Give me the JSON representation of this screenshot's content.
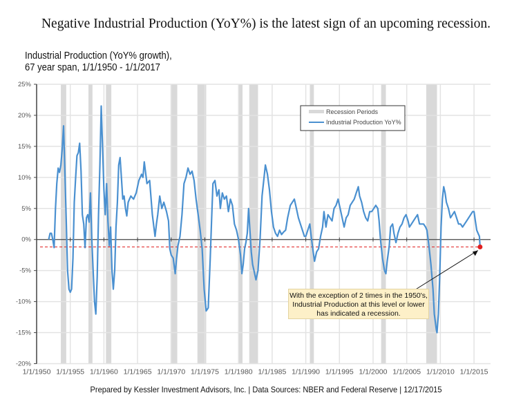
{
  "headline": "Negative Industrial Production (YoY%) is the latest sign of an upcoming recession.",
  "subtitle_line1": "Industrial Production (YoY% growth),",
  "subtitle_line2": "67 year span, 1/1/1950 - 1/1/2017",
  "footer": "Prepared by Kessler Investment Advisors, Inc. | Data Sources: NBER and Federal Reserve | 12/17/2015",
  "annotation": {
    "lines": [
      "With the exception of 2 times in the 1950's,",
      "Industrial Production at this level or lower",
      "has indicated a recession."
    ]
  },
  "colors": {
    "series": "#4a90d0",
    "recession": "#d9d9d9",
    "threshold": "#e02020",
    "grid": "#e3e3e3",
    "axis": "#444444"
  },
  "chart_data": {
    "type": "line",
    "title": "Industrial Production (YoY% growth), 67 year span, 1/1/1950 - 1/1/2017",
    "xlabel": "",
    "ylabel": "",
    "xlim": [
      1950,
      2017.2
    ],
    "ylim": [
      -20,
      25
    ],
    "grid": true,
    "legend_position": "top-right",
    "legend": [
      "Recession Periods",
      "Industrial Production YoY%"
    ],
    "y_ticks": [
      "25%",
      "20%",
      "15%",
      "10%",
      "5%",
      "0%",
      "-5%",
      "-10%",
      "-15%",
      "-20%"
    ],
    "y_tick_values": [
      25,
      20,
      15,
      10,
      5,
      0,
      -5,
      -10,
      -15,
      -20
    ],
    "x_ticks": [
      "1/1/1950",
      "1/1/1955",
      "1/1/1960",
      "1/1/1965",
      "1/1/1970",
      "1/1/1975",
      "1/1/1980",
      "1/1/1985",
      "1/1/1990",
      "1/1/1995",
      "2000",
      "1/1/2005",
      "1/1/2010",
      "1/1/2015"
    ],
    "x_tick_values": [
      1950,
      1955,
      1960,
      1965,
      1970,
      1975,
      1980,
      1985,
      1990,
      1995,
      2000,
      2005,
      2010,
      2015
    ],
    "threshold": {
      "value": -1.2,
      "style": "dashed",
      "label": ""
    },
    "latest_point": {
      "x": 2015.9,
      "y": -1.2
    },
    "recessions": [
      [
        1953.6,
        1954.4
      ],
      [
        1957.7,
        1958.3
      ],
      [
        1960.3,
        1961.1
      ],
      [
        1969.9,
        1970.9
      ],
      [
        1973.9,
        1975.2
      ],
      [
        1980.0,
        1980.6
      ],
      [
        1981.6,
        1982.9
      ],
      [
        1990.6,
        1991.2
      ],
      [
        2001.2,
        2001.9
      ],
      [
        2007.9,
        2009.5
      ]
    ],
    "series": [
      {
        "name": "Industrial Production YoY%",
        "points": [
          [
            1951.8,
            0.0
          ],
          [
            1952.0,
            1.0
          ],
          [
            1952.2,
            1.0
          ],
          [
            1952.4,
            0.0
          ],
          [
            1952.6,
            -1.3
          ],
          [
            1952.8,
            5.0
          ],
          [
            1953.0,
            9.0
          ],
          [
            1953.2,
            11.5
          ],
          [
            1953.4,
            10.8
          ],
          [
            1953.6,
            12.0
          ],
          [
            1953.8,
            14.5
          ],
          [
            1954.0,
            18.3
          ],
          [
            1954.2,
            11.0
          ],
          [
            1954.4,
            3.0
          ],
          [
            1954.6,
            -5.0
          ],
          [
            1954.8,
            -8.0
          ],
          [
            1955.0,
            -8.5
          ],
          [
            1955.2,
            -8.0
          ],
          [
            1955.4,
            -3.0
          ],
          [
            1955.6,
            6.0
          ],
          [
            1955.8,
            10.0
          ],
          [
            1956.0,
            13.5
          ],
          [
            1956.2,
            14.0
          ],
          [
            1956.4,
            15.5
          ],
          [
            1956.6,
            11.0
          ],
          [
            1956.8,
            4.0
          ],
          [
            1957.0,
            2.5
          ],
          [
            1957.2,
            -1.3
          ],
          [
            1957.4,
            3.5
          ],
          [
            1957.6,
            4.0
          ],
          [
            1957.8,
            2.8
          ],
          [
            1958.0,
            7.5
          ],
          [
            1958.2,
            0.0
          ],
          [
            1958.4,
            -5.0
          ],
          [
            1958.6,
            -10.0
          ],
          [
            1958.8,
            -12.0
          ],
          [
            1959.0,
            -6.0
          ],
          [
            1959.2,
            4.0
          ],
          [
            1959.4,
            12.0
          ],
          [
            1959.6,
            21.5
          ],
          [
            1959.8,
            15.0
          ],
          [
            1960.0,
            8.0
          ],
          [
            1960.2,
            4.0
          ],
          [
            1960.4,
            9.0
          ],
          [
            1960.6,
            3.0
          ],
          [
            1960.8,
            -1.0
          ],
          [
            1961.0,
            2.0
          ],
          [
            1961.2,
            -5.0
          ],
          [
            1961.4,
            -8.0
          ],
          [
            1961.6,
            -5.0
          ],
          [
            1961.8,
            2.0
          ],
          [
            1962.0,
            6.0
          ],
          [
            1962.2,
            12.0
          ],
          [
            1962.4,
            13.2
          ],
          [
            1962.6,
            10.0
          ],
          [
            1962.8,
            6.5
          ],
          [
            1963.0,
            7.0
          ],
          [
            1963.2,
            5.0
          ],
          [
            1963.4,
            3.8
          ],
          [
            1963.6,
            6.0
          ],
          [
            1963.8,
            6.5
          ],
          [
            1964.0,
            7.0
          ],
          [
            1964.4,
            6.5
          ],
          [
            1964.8,
            7.5
          ],
          [
            1965.2,
            9.5
          ],
          [
            1965.6,
            10.5
          ],
          [
            1965.8,
            10.0
          ],
          [
            1966.0,
            12.5
          ],
          [
            1966.4,
            9.0
          ],
          [
            1966.8,
            9.5
          ],
          [
            1967.2,
            4.0
          ],
          [
            1967.6,
            0.5
          ],
          [
            1967.8,
            2.5
          ],
          [
            1968.0,
            4.0
          ],
          [
            1968.3,
            7.0
          ],
          [
            1968.6,
            5.0
          ],
          [
            1968.9,
            6.0
          ],
          [
            1969.3,
            4.5
          ],
          [
            1969.6,
            3.0
          ],
          [
            1969.8,
            -1.5
          ],
          [
            1970.0,
            -2.5
          ],
          [
            1970.3,
            -3.0
          ],
          [
            1970.6,
            -5.5
          ],
          [
            1970.8,
            -3.0
          ],
          [
            1971.0,
            -1.0
          ],
          [
            1971.3,
            0.5
          ],
          [
            1971.6,
            4.0
          ],
          [
            1971.9,
            9.0
          ],
          [
            1972.2,
            10.0
          ],
          [
            1972.5,
            11.5
          ],
          [
            1972.8,
            10.5
          ],
          [
            1973.1,
            11.0
          ],
          [
            1973.4,
            9.5
          ],
          [
            1973.7,
            6.5
          ],
          [
            1974.0,
            4.0
          ],
          [
            1974.3,
            1.5
          ],
          [
            1974.6,
            -1.5
          ],
          [
            1974.9,
            -8.0
          ],
          [
            1975.2,
            -11.5
          ],
          [
            1975.5,
            -11.0
          ],
          [
            1975.8,
            -3.0
          ],
          [
            1976.0,
            3.0
          ],
          [
            1976.2,
            9.0
          ],
          [
            1976.5,
            9.5
          ],
          [
            1976.8,
            7.0
          ],
          [
            1977.1,
            8.0
          ],
          [
            1977.3,
            5.0
          ],
          [
            1977.6,
            7.5
          ],
          [
            1977.9,
            6.5
          ],
          [
            1978.2,
            7.0
          ],
          [
            1978.5,
            4.5
          ],
          [
            1978.8,
            6.5
          ],
          [
            1979.1,
            5.5
          ],
          [
            1979.4,
            2.5
          ],
          [
            1979.7,
            1.5
          ],
          [
            1980.0,
            0.0
          ],
          [
            1980.3,
            -2.5
          ],
          [
            1980.5,
            -5.5
          ],
          [
            1980.7,
            -4.0
          ],
          [
            1980.9,
            -1.5
          ],
          [
            1981.1,
            -0.5
          ],
          [
            1981.3,
            1.0
          ],
          [
            1981.5,
            5.0
          ],
          [
            1981.7,
            1.5
          ],
          [
            1981.9,
            -2.0
          ],
          [
            1982.1,
            -4.0
          ],
          [
            1982.3,
            -5.0
          ],
          [
            1982.6,
            -6.5
          ],
          [
            1982.9,
            -5.0
          ],
          [
            1983.2,
            0.0
          ],
          [
            1983.5,
            7.0
          ],
          [
            1983.8,
            10.0
          ],
          [
            1984.0,
            12.0
          ],
          [
            1984.3,
            10.5
          ],
          [
            1984.6,
            8.0
          ],
          [
            1984.9,
            4.5
          ],
          [
            1985.2,
            2.0
          ],
          [
            1985.5,
            1.0
          ],
          [
            1985.8,
            0.5
          ],
          [
            1986.1,
            1.5
          ],
          [
            1986.4,
            0.8
          ],
          [
            1986.7,
            1.2
          ],
          [
            1987.0,
            1.5
          ],
          [
            1987.3,
            3.5
          ],
          [
            1987.7,
            5.5
          ],
          [
            1988.0,
            6.0
          ],
          [
            1988.3,
            6.5
          ],
          [
            1988.6,
            5.0
          ],
          [
            1988.9,
            3.5
          ],
          [
            1989.2,
            2.5
          ],
          [
            1989.5,
            1.5
          ],
          [
            1989.8,
            0.5
          ],
          [
            1990.0,
            0.5
          ],
          [
            1990.3,
            1.5
          ],
          [
            1990.6,
            2.5
          ],
          [
            1990.8,
            0.5
          ],
          [
            1991.1,
            -2.0
          ],
          [
            1991.3,
            -3.5
          ],
          [
            1991.6,
            -2.0
          ],
          [
            1991.9,
            -1.5
          ],
          [
            1992.2,
            0.5
          ],
          [
            1992.5,
            2.0
          ],
          [
            1992.7,
            4.5
          ],
          [
            1993.0,
            2.0
          ],
          [
            1993.3,
            4.0
          ],
          [
            1993.6,
            3.5
          ],
          [
            1993.9,
            3.0
          ],
          [
            1994.2,
            5.0
          ],
          [
            1994.5,
            5.5
          ],
          [
            1994.8,
            6.5
          ],
          [
            1995.1,
            5.0
          ],
          [
            1995.4,
            3.5
          ],
          [
            1995.7,
            2.0
          ],
          [
            1996.0,
            3.5
          ],
          [
            1996.3,
            4.0
          ],
          [
            1996.6,
            5.5
          ],
          [
            1996.9,
            6.0
          ],
          [
            1997.2,
            6.5
          ],
          [
            1997.5,
            7.5
          ],
          [
            1997.8,
            8.5
          ],
          [
            1998.0,
            7.0
          ],
          [
            1998.3,
            6.0
          ],
          [
            1998.6,
            4.5
          ],
          [
            1998.9,
            3.5
          ],
          [
            1999.2,
            3.0
          ],
          [
            1999.5,
            4.5
          ],
          [
            1999.8,
            4.5
          ],
          [
            2000.1,
            5.0
          ],
          [
            2000.4,
            5.5
          ],
          [
            2000.7,
            5.0
          ],
          [
            2000.9,
            3.0
          ],
          [
            2001.1,
            0.0
          ],
          [
            2001.4,
            -3.0
          ],
          [
            2001.7,
            -5.0
          ],
          [
            2001.9,
            -5.5
          ],
          [
            2002.1,
            -3.5
          ],
          [
            2002.4,
            -1.0
          ],
          [
            2002.6,
            2.0
          ],
          [
            2002.9,
            2.5
          ],
          [
            2003.1,
            1.0
          ],
          [
            2003.4,
            -0.5
          ],
          [
            2003.7,
            1.0
          ],
          [
            2004.0,
            2.0
          ],
          [
            2004.3,
            2.5
          ],
          [
            2004.6,
            3.5
          ],
          [
            2004.9,
            4.0
          ],
          [
            2005.2,
            3.0
          ],
          [
            2005.4,
            2.0
          ],
          [
            2005.7,
            2.5
          ],
          [
            2006.0,
            3.0
          ],
          [
            2006.3,
            3.5
          ],
          [
            2006.6,
            4.0
          ],
          [
            2006.9,
            2.5
          ],
          [
            2007.2,
            2.5
          ],
          [
            2007.5,
            2.5
          ],
          [
            2007.8,
            2.0
          ],
          [
            2008.0,
            1.5
          ],
          [
            2008.3,
            -1.0
          ],
          [
            2008.6,
            -4.0
          ],
          [
            2008.9,
            -8.0
          ],
          [
            2009.1,
            -12.0
          ],
          [
            2009.4,
            -14.5
          ],
          [
            2009.5,
            -15.0
          ],
          [
            2009.7,
            -12.0
          ],
          [
            2009.9,
            -6.0
          ],
          [
            2010.1,
            2.0
          ],
          [
            2010.3,
            6.5
          ],
          [
            2010.5,
            8.5
          ],
          [
            2010.7,
            7.5
          ],
          [
            2010.9,
            6.0
          ],
          [
            2011.2,
            5.0
          ],
          [
            2011.5,
            3.5
          ],
          [
            2011.8,
            4.0
          ],
          [
            2012.1,
            4.5
          ],
          [
            2012.4,
            3.5
          ],
          [
            2012.7,
            2.5
          ],
          [
            2013.0,
            2.5
          ],
          [
            2013.3,
            2.0
          ],
          [
            2013.6,
            2.5
          ],
          [
            2013.9,
            3.0
          ],
          [
            2014.2,
            3.5
          ],
          [
            2014.5,
            4.0
          ],
          [
            2014.8,
            4.5
          ],
          [
            2015.0,
            4.5
          ],
          [
            2015.2,
            3.0
          ],
          [
            2015.4,
            1.5
          ],
          [
            2015.6,
            1.0
          ],
          [
            2015.8,
            0.5
          ],
          [
            2015.9,
            -1.2
          ]
        ]
      }
    ]
  }
}
